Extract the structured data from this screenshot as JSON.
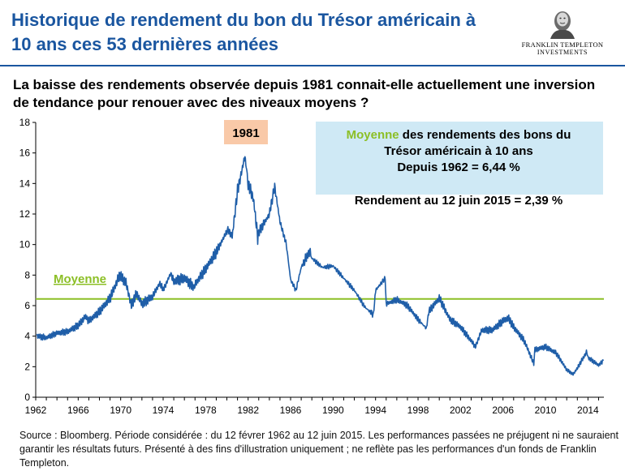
{
  "title": "Historique  de rendement du bon du Trésor américain à 10 ans ces 53 dernières années",
  "brand": {
    "line1": "FRANKLIN TEMPLETON",
    "line2": "INVESTMENTS"
  },
  "question": "La baisse des rendements observée depuis 1981 connait-elle actuellement une inversion de tendance pour renouer avec des niveaux moyens ?",
  "source": "Source : Bloomberg.  Période considérée : du 12 févrer 1962 au 12 juin 2015. Les performances passées ne préjugent ni ne sauraient garantir les résultats futurs.  Présenté à des fins d'illustration uniquement ; ne reflète pas les performances d'un fonds de Franklin Templeton.",
  "colors": {
    "title": "#1a56a0",
    "series": "#1f5ea8",
    "average": "#8cbf26",
    "peak_box": "#f9c9a8",
    "info_box": "#cfe9f5"
  },
  "chart_data": {
    "type": "line",
    "xlim": [
      1962,
      2015.5
    ],
    "ylim": [
      0,
      18
    ],
    "x_ticks": [
      "1962",
      "1966",
      "1970",
      "1974",
      "1978",
      "1982",
      "1986",
      "1990",
      "1994",
      "1998",
      "2002",
      "2006",
      "2010",
      "2014"
    ],
    "y_ticks": [
      "0",
      "2",
      "4",
      "6",
      "8",
      "10",
      "12",
      "14",
      "16",
      "18"
    ],
    "grid": false,
    "series": [
      {
        "x": [
          1962.1,
          1963,
          1964,
          1965,
          1966,
          1966.7,
          1967,
          1968,
          1969,
          1969.9,
          1970.5,
          1971,
          1971.5,
          1972,
          1973,
          1973.7,
          1974,
          1974.7,
          1975,
          1976,
          1976.9,
          1977,
          1978,
          1979,
          1980.1,
          1980.5,
          1981,
          1981.7,
          1982,
          1982.5,
          1982.9,
          1983,
          1984,
          1984.5,
          1985,
          1985.6,
          1986,
          1986.5,
          1987,
          1987.8,
          1988,
          1989,
          1990,
          1991,
          1992,
          1993,
          1993.8,
          1994,
          1994.9,
          1995,
          1996,
          1997,
          1998,
          1998.8,
          1999,
          2000,
          2001,
          2002,
          2003,
          2003.4,
          2004,
          2005,
          2006,
          2006.5,
          2007,
          2008,
          2008.9,
          2009,
          2010,
          2011,
          2012,
          2012.6,
          2013,
          2013.9,
          2014,
          2015,
          2015.45
        ],
        "y": [
          4.0,
          3.9,
          4.2,
          4.3,
          4.7,
          5.3,
          5.0,
          5.6,
          6.5,
          8.0,
          7.5,
          6.0,
          6.8,
          6.1,
          6.6,
          7.5,
          7.0,
          8.1,
          7.6,
          7.8,
          7.2,
          7.4,
          8.4,
          9.5,
          11.0,
          10.5,
          13.5,
          15.8,
          14.0,
          13.0,
          10.5,
          10.8,
          12.0,
          13.8,
          11.5,
          10.0,
          7.7,
          7.0,
          8.5,
          9.6,
          9.1,
          8.5,
          8.6,
          7.8,
          7.0,
          5.9,
          5.4,
          7.0,
          7.8,
          6.1,
          6.4,
          6.0,
          5.1,
          4.5,
          5.6,
          6.5,
          5.1,
          4.6,
          3.7,
          3.3,
          4.4,
          4.4,
          5.0,
          5.2,
          4.6,
          3.7,
          2.2,
          3.1,
          3.3,
          2.9,
          1.8,
          1.5,
          1.9,
          3.0,
          2.6,
          2.1,
          2.39
        ]
      },
      {
        "name": "Moyenne",
        "value": 6.44
      }
    ],
    "annotations": {
      "peak_label": "1981",
      "average_label": "Moyenne",
      "info_highlight": "Moyenne",
      "info_rest": " des rendements  des bons du",
      "info_line2": "Trésor américain  à 10 ans",
      "info_line3": "Depuis  1962 = 6,44 %",
      "yield_note": "Rendement  au 12 juin  2015 = 2,39 %"
    }
  }
}
